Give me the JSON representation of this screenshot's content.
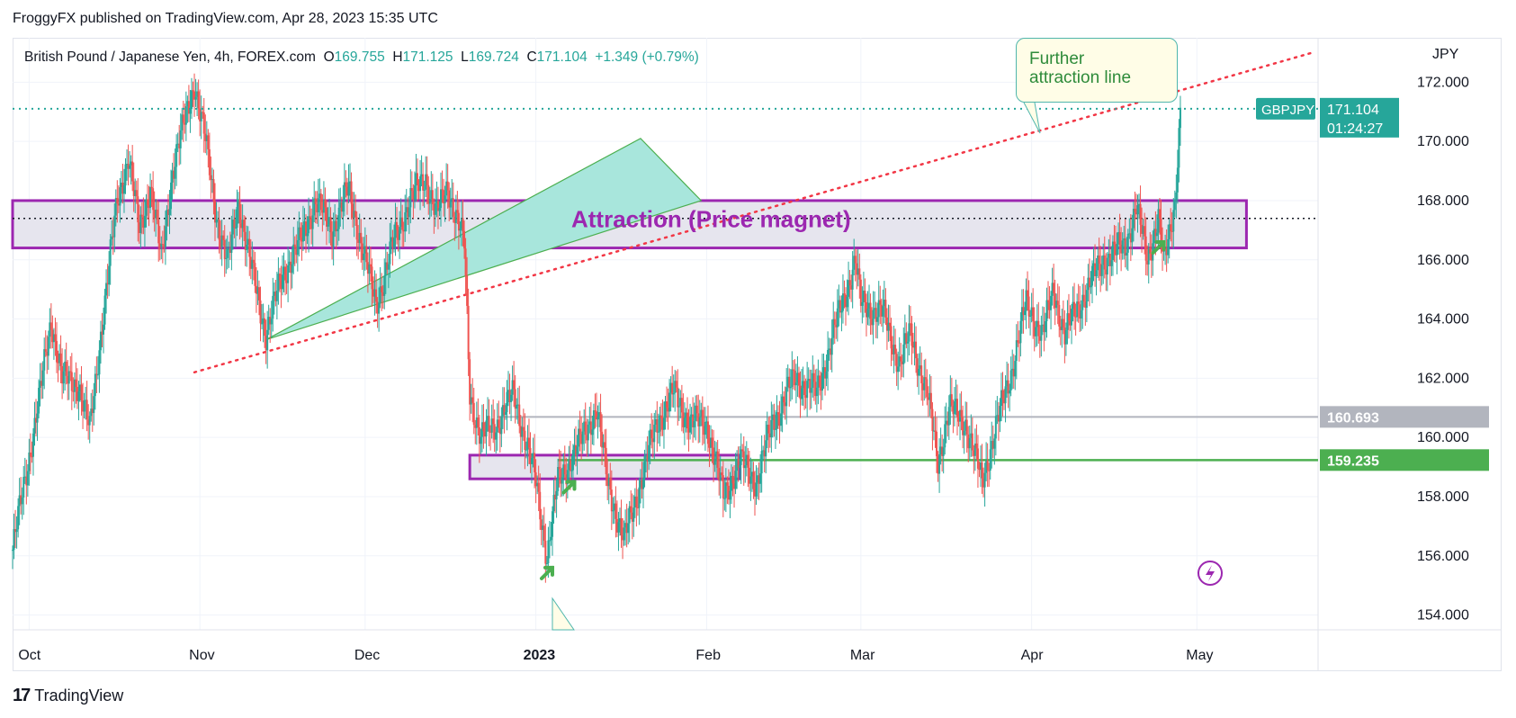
{
  "header": {
    "text": "FroggyFX published on TradingView.com, Apr 28, 2023 15:35 UTC"
  },
  "legend": {
    "instrument": "British Pound / Japanese Yen, 4h, FOREX.com",
    "o_label": "O",
    "o": "169.755",
    "h_label": "H",
    "h": "171.125",
    "l_label": "L",
    "l": "169.724",
    "c_label": "C",
    "c": "171.104",
    "change": "+1.349 (+0.79%)"
  },
  "currency": "JPY",
  "callout": {
    "line1": "Further",
    "line2": "attraction line"
  },
  "brand": {
    "logo": "17",
    "name": "TradingView"
  },
  "colors": {
    "up": "#26a69a",
    "down": "#ef5350",
    "purple": "#9c27b0",
    "green_line": "#4caf50",
    "gray_line": "#b2b5be",
    "dotted_red": "#f23645",
    "teal_fill": "#a8e6dc"
  },
  "chart_data": {
    "type": "candlestick",
    "symbol": "GBPJPY",
    "ylim": [
      153.5,
      173.5
    ],
    "y_ticks": [
      "154.000",
      "156.000",
      "158.000",
      "160.000",
      "162.000",
      "164.000",
      "166.000",
      "168.000",
      "170.000",
      "172.000"
    ],
    "x_ticks": [
      {
        "label": "Oct",
        "date": "2022-10-01",
        "bold": false
      },
      {
        "label": "Nov",
        "date": "2022-11-01",
        "bold": false
      },
      {
        "label": "Dec",
        "date": "2022-12-01",
        "bold": false
      },
      {
        "label": "2023",
        "date": "2023-01-01",
        "bold": true
      },
      {
        "label": "Feb",
        "date": "2023-02-01",
        "bold": false
      },
      {
        "label": "Mar",
        "date": "2023-03-01",
        "bold": false
      },
      {
        "label": "Apr",
        "date": "2023-04-01",
        "bold": false
      },
      {
        "label": "May",
        "date": "2023-05-01",
        "bold": false
      }
    ],
    "x_range": [
      "2022-09-28",
      "2023-05-23"
    ],
    "price_path": [
      [
        "2022-09-28",
        156.2
      ],
      [
        "2022-10-03",
        161.5
      ],
      [
        "2022-10-05",
        164.0
      ],
      [
        "2022-10-07",
        162.0
      ],
      [
        "2022-10-10",
        161.8
      ],
      [
        "2022-10-12",
        160.2
      ],
      [
        "2022-10-14",
        163.5
      ],
      [
        "2022-10-17",
        168.0
      ],
      [
        "2022-10-19",
        169.5
      ],
      [
        "2022-10-21",
        167.0
      ],
      [
        "2022-10-23",
        168.5
      ],
      [
        "2022-10-25",
        166.0
      ],
      [
        "2022-10-27",
        169.0
      ],
      [
        "2022-10-31",
        172.0
      ],
      [
        "2022-11-02",
        170.0
      ],
      [
        "2022-11-04",
        167.5
      ],
      [
        "2022-11-06",
        165.8
      ],
      [
        "2022-11-08",
        168.0
      ],
      [
        "2022-11-10",
        166.0
      ],
      [
        "2022-11-13",
        163.5
      ],
      [
        "2022-11-16",
        165.5
      ],
      [
        "2022-11-19",
        166.5
      ],
      [
        "2022-11-22",
        168.0
      ],
      [
        "2022-11-25",
        167.0
      ],
      [
        "2022-11-28",
        168.4
      ],
      [
        "2022-12-01",
        166.0
      ],
      [
        "2022-12-03",
        164.5
      ],
      [
        "2022-12-06",
        166.5
      ],
      [
        "2022-12-09",
        168.0
      ],
      [
        "2022-12-12",
        168.8
      ],
      [
        "2022-12-14",
        167.5
      ],
      [
        "2022-12-16",
        168.5
      ],
      [
        "2022-12-19",
        166.5
      ],
      [
        "2022-12-20",
        161.5
      ],
      [
        "2022-12-22",
        160.0
      ],
      [
        "2022-12-25",
        160.5
      ],
      [
        "2022-12-28",
        161.5
      ],
      [
        "2023-01-01",
        158.5
      ],
      [
        "2023-01-03",
        156.0
      ],
      [
        "2023-01-05",
        158.5
      ],
      [
        "2023-01-09",
        159.8
      ],
      [
        "2023-01-12",
        161.0
      ],
      [
        "2023-01-14",
        158.5
      ],
      [
        "2023-01-17",
        156.5
      ],
      [
        "2023-01-20",
        158.5
      ],
      [
        "2023-01-23",
        160.5
      ],
      [
        "2023-01-26",
        161.5
      ],
      [
        "2023-01-29",
        160.5
      ],
      [
        "2023-02-01",
        160.5
      ],
      [
        "2023-02-04",
        158.0
      ],
      [
        "2023-02-07",
        159.2
      ],
      [
        "2023-02-10",
        158.5
      ],
      [
        "2023-02-13",
        160.5
      ],
      [
        "2023-02-17",
        162.0
      ],
      [
        "2023-02-21",
        161.5
      ],
      [
        "2023-02-24",
        163.5
      ],
      [
        "2023-02-28",
        166.0
      ],
      [
        "2023-03-01",
        164.5
      ],
      [
        "2023-03-05",
        164.2
      ],
      [
        "2023-03-08",
        162.5
      ],
      [
        "2023-03-10",
        163.5
      ],
      [
        "2023-03-13",
        161.5
      ],
      [
        "2023-03-15",
        159.2
      ],
      [
        "2023-03-17",
        161.0
      ],
      [
        "2023-03-20",
        160.5
      ],
      [
        "2023-03-23",
        158.5
      ],
      [
        "2023-03-25",
        160.0
      ],
      [
        "2023-03-28",
        162.0
      ],
      [
        "2023-03-31",
        164.5
      ],
      [
        "2023-04-03",
        163.5
      ],
      [
        "2023-04-05",
        165.0
      ],
      [
        "2023-04-07",
        163.5
      ],
      [
        "2023-04-11",
        165.0
      ],
      [
        "2023-04-14",
        166.0
      ],
      [
        "2023-04-18",
        166.5
      ],
      [
        "2023-04-20",
        167.8
      ],
      [
        "2023-04-22",
        166.0
      ],
      [
        "2023-04-24",
        167.5
      ],
      [
        "2023-04-25",
        165.8
      ],
      [
        "2023-04-26",
        166.8
      ],
      [
        "2023-04-27",
        168.0
      ],
      [
        "2023-04-28",
        171.1
      ]
    ],
    "last_price": {
      "label": "GBPJPY",
      "value": "171.104",
      "countdown": "01:24:27"
    },
    "price_lines": [
      {
        "label": "160.693",
        "value": 160.693,
        "color": "#b2b5be",
        "from": "2022-12-25"
      },
      {
        "label": "159.235",
        "value": 159.235,
        "color": "#4caf50",
        "from": "2023-01-05"
      }
    ],
    "annotations": {
      "attraction_zone": {
        "label": "Attraction (Price magnet)",
        "from": "2022-09-28",
        "to": "2023-05-10",
        "y_top": 168.0,
        "y_bottom": 166.4,
        "mid": 167.4
      },
      "lower_zone": {
        "from": "2022-12-20",
        "to": "2023-02-07",
        "y_top": 159.4,
        "y_bottom": 158.6
      },
      "dotted_trendline": {
        "from": [
          "2022-10-31",
          162.2
        ],
        "to": [
          "2023-05-22",
          173.0
        ]
      },
      "triangle": {
        "points": [
          [
            "2022-11-13",
            163.3
          ],
          [
            "2023-01-20",
            170.1
          ],
          [
            "2023-01-31",
            168.0
          ]
        ]
      },
      "arrows": [
        [
          "2023-01-04",
          155.6
        ],
        [
          "2023-01-08",
          158.5
        ],
        [
          "2023-04-25",
          166.6
        ]
      ]
    }
  }
}
